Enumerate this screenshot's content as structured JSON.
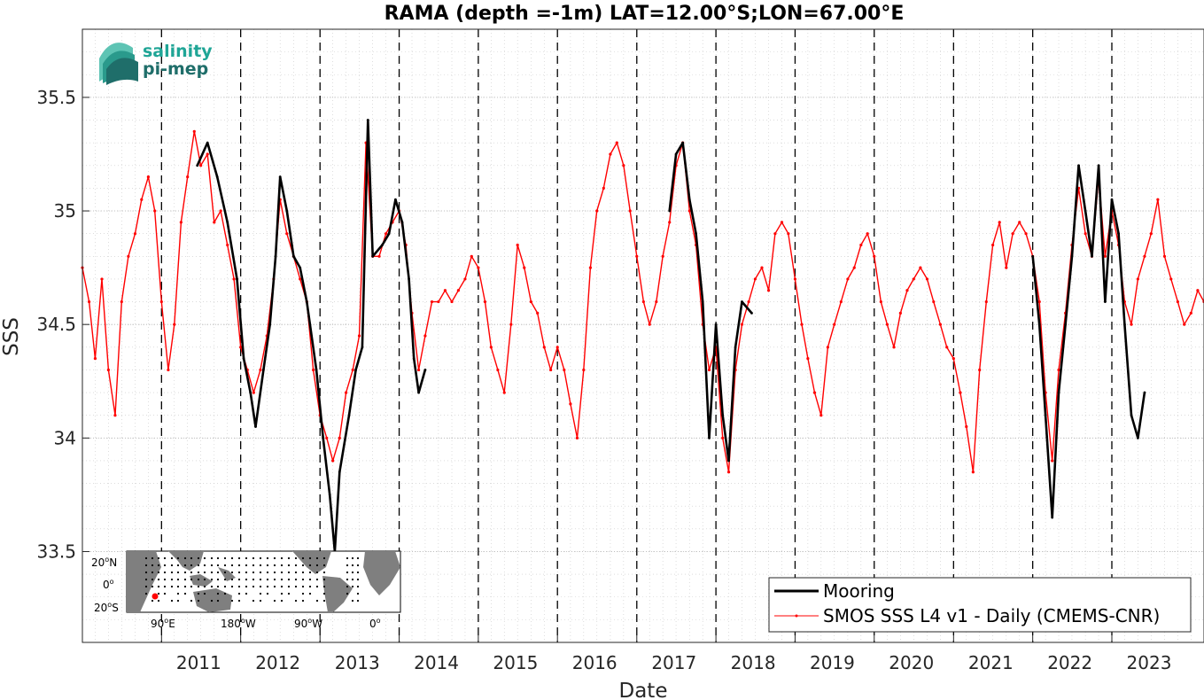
{
  "colors": {
    "mooring": "#000000",
    "smos": "#ff0000",
    "vline": "#000000",
    "grid": "#c8c8c8",
    "logo_light": "#1fa596",
    "logo_dark": "#1f6e6a",
    "map_land": "#7f7f7f",
    "map_ocean": "#ffffff",
    "map_marker": "#ff0000"
  },
  "logo": {
    "line1": "salinity",
    "line2": "pi-mep"
  },
  "inset_map": {
    "lat_ticks": [
      "20",
      "0",
      "20"
    ],
    "lat_suffix": [
      "N",
      "",
      "S"
    ],
    "lon_ticks": [
      "90",
      "180",
      "90",
      "0"
    ],
    "lon_suffix": [
      "E",
      "W",
      "W",
      ""
    ],
    "marker": {
      "lat": -12,
      "lon": 67
    }
  },
  "chart_data": {
    "type": "line",
    "title": "RAMA (depth =-1m) LAT=12.00°S;LON=67.00°E",
    "xlabel": "Date",
    "ylabel": "SSS",
    "xlim": [
      "2010-01-01",
      "2024-03-01"
    ],
    "ylim": [
      33.1,
      35.8
    ],
    "yticks": [
      33.5,
      34,
      34.5,
      35,
      35.5
    ],
    "ytick_labels": [
      "33.5",
      "34",
      "34.5",
      "35",
      "35.5"
    ],
    "xticks": [
      "2011",
      "2012",
      "2013",
      "2014",
      "2015",
      "2016",
      "2017",
      "2018",
      "2019",
      "2020",
      "2021",
      "2022",
      "2023"
    ],
    "year_lines": [
      "2011-01-01",
      "2012-01-01",
      "2013-01-01",
      "2014-01-01",
      "2015-01-01",
      "2016-01-01",
      "2017-01-01",
      "2018-01-01",
      "2019-01-01",
      "2020-01-01",
      "2021-01-01",
      "2022-01-01",
      "2023-01-01"
    ],
    "grid": true,
    "legend_position": "bottom-right",
    "series": [
      {
        "name": "Mooring",
        "segments": [
          [
            [
              "2011-06-15",
              35.2
            ],
            [
              "2011-08-01",
              35.3
            ],
            [
              "2011-09-15",
              35.15
            ],
            [
              "2011-11-01",
              34.95
            ],
            [
              "2011-12-15",
              34.7
            ],
            [
              "2012-01-15",
              34.35
            ],
            [
              "2012-02-15",
              34.2
            ],
            [
              "2012-03-10",
              34.05
            ],
            [
              "2012-04-15",
              34.3
            ],
            [
              "2012-05-15",
              34.5
            ],
            [
              "2012-06-10",
              34.8
            ],
            [
              "2012-07-01",
              35.15
            ],
            [
              "2012-08-01",
              35.0
            ],
            [
              "2012-09-01",
              34.8
            ],
            [
              "2012-10-01",
              34.75
            ],
            [
              "2012-11-01",
              34.6
            ],
            [
              "2012-12-15",
              34.3
            ],
            [
              "2013-01-15",
              34.0
            ],
            [
              "2013-02-15",
              33.75
            ],
            [
              "2013-03-10",
              33.5
            ],
            [
              "2013-04-01",
              33.85
            ],
            [
              "2013-05-15",
              34.1
            ],
            [
              "2013-06-15",
              34.3
            ],
            [
              "2013-07-15",
              34.4
            ],
            [
              "2013-08-10",
              35.4
            ],
            [
              "2013-09-01",
              34.8
            ],
            [
              "2013-10-15",
              34.85
            ],
            [
              "2013-11-15",
              34.9
            ],
            [
              "2013-12-15",
              35.05
            ],
            [
              "2014-01-15",
              34.95
            ],
            [
              "2014-02-15",
              34.7
            ],
            [
              "2014-03-10",
              34.35
            ],
            [
              "2014-04-01",
              34.2
            ],
            [
              "2014-05-01",
              34.3
            ]
          ],
          [
            [
              "2017-06-01",
              35.0
            ],
            [
              "2017-07-01",
              35.25
            ],
            [
              "2017-08-01",
              35.3
            ],
            [
              "2017-09-01",
              35.05
            ],
            [
              "2017-10-01",
              34.9
            ],
            [
              "2017-11-01",
              34.6
            ],
            [
              "2017-12-01",
              34.0
            ],
            [
              "2018-01-01",
              34.5
            ],
            [
              "2018-02-01",
              34.1
            ],
            [
              "2018-03-01",
              33.9
            ],
            [
              "2018-04-01",
              34.4
            ],
            [
              "2018-05-01",
              34.6
            ],
            [
              "2018-06-15",
              34.55
            ]
          ],
          [
            [
              "2022-01-01",
              34.8
            ],
            [
              "2022-02-01",
              34.5
            ],
            [
              "2022-03-01",
              34.1
            ],
            [
              "2022-04-01",
              33.65
            ],
            [
              "2022-05-01",
              34.2
            ],
            [
              "2022-06-01",
              34.5
            ],
            [
              "2022-07-01",
              34.8
            ],
            [
              "2022-08-01",
              35.2
            ],
            [
              "2022-09-01",
              35.0
            ],
            [
              "2022-10-01",
              34.8
            ],
            [
              "2022-11-01",
              35.2
            ],
            [
              "2022-12-01",
              34.6
            ],
            [
              "2023-01-01",
              35.05
            ],
            [
              "2023-02-01",
              34.9
            ],
            [
              "2023-03-01",
              34.5
            ],
            [
              "2023-04-01",
              34.1
            ],
            [
              "2023-05-01",
              34.0
            ],
            [
              "2023-06-01",
              34.2
            ]
          ]
        ]
      },
      {
        "name": "SMOS SSS L4 v1 - Daily (CMEMS-CNR)",
        "points": [
          [
            "2010-01-01",
            34.75
          ],
          [
            "2010-02-01",
            34.6
          ],
          [
            "2010-03-01",
            34.35
          ],
          [
            "2010-04-01",
            34.7
          ],
          [
            "2010-05-01",
            34.3
          ],
          [
            "2010-06-01",
            34.1
          ],
          [
            "2010-07-01",
            34.6
          ],
          [
            "2010-08-01",
            34.8
          ],
          [
            "2010-09-01",
            34.9
          ],
          [
            "2010-10-01",
            35.05
          ],
          [
            "2010-11-01",
            35.15
          ],
          [
            "2010-12-01",
            35.0
          ],
          [
            "2011-01-01",
            34.6
          ],
          [
            "2011-02-01",
            34.3
          ],
          [
            "2011-03-01",
            34.5
          ],
          [
            "2011-04-01",
            34.95
          ],
          [
            "2011-05-01",
            35.15
          ],
          [
            "2011-06-01",
            35.35
          ],
          [
            "2011-07-01",
            35.2
          ],
          [
            "2011-08-01",
            35.25
          ],
          [
            "2011-09-01",
            34.95
          ],
          [
            "2011-10-01",
            35.0
          ],
          [
            "2011-11-01",
            34.85
          ],
          [
            "2011-12-01",
            34.7
          ],
          [
            "2012-01-01",
            34.4
          ],
          [
            "2012-02-01",
            34.3
          ],
          [
            "2012-03-01",
            34.2
          ],
          [
            "2012-04-01",
            34.3
          ],
          [
            "2012-05-01",
            34.45
          ],
          [
            "2012-06-01",
            34.7
          ],
          [
            "2012-07-01",
            35.05
          ],
          [
            "2012-08-01",
            34.9
          ],
          [
            "2012-09-01",
            34.8
          ],
          [
            "2012-10-01",
            34.7
          ],
          [
            "2012-11-01",
            34.6
          ],
          [
            "2012-12-01",
            34.3
          ],
          [
            "2013-01-01",
            34.1
          ],
          [
            "2013-02-01",
            34.0
          ],
          [
            "2013-03-01",
            33.9
          ],
          [
            "2013-04-01",
            34.0
          ],
          [
            "2013-05-01",
            34.2
          ],
          [
            "2013-06-01",
            34.3
          ],
          [
            "2013-07-01",
            34.45
          ],
          [
            "2013-08-01",
            35.3
          ],
          [
            "2013-09-01",
            34.8
          ],
          [
            "2013-10-01",
            34.8
          ],
          [
            "2013-11-01",
            34.9
          ],
          [
            "2013-12-01",
            34.95
          ],
          [
            "2014-01-01",
            35.0
          ],
          [
            "2014-02-01",
            34.85
          ],
          [
            "2014-03-01",
            34.55
          ],
          [
            "2014-04-01",
            34.3
          ],
          [
            "2014-05-01",
            34.45
          ],
          [
            "2014-06-01",
            34.6
          ],
          [
            "2014-07-01",
            34.6
          ],
          [
            "2014-08-01",
            34.65
          ],
          [
            "2014-09-01",
            34.6
          ],
          [
            "2014-10-01",
            34.65
          ],
          [
            "2014-11-01",
            34.7
          ],
          [
            "2014-12-01",
            34.8
          ],
          [
            "2015-01-01",
            34.75
          ],
          [
            "2015-02-01",
            34.6
          ],
          [
            "2015-03-01",
            34.4
          ],
          [
            "2015-04-01",
            34.3
          ],
          [
            "2015-05-01",
            34.2
          ],
          [
            "2015-06-01",
            34.5
          ],
          [
            "2015-07-01",
            34.85
          ],
          [
            "2015-08-01",
            34.75
          ],
          [
            "2015-09-01",
            34.6
          ],
          [
            "2015-10-01",
            34.55
          ],
          [
            "2015-11-01",
            34.4
          ],
          [
            "2015-12-01",
            34.3
          ],
          [
            "2016-01-01",
            34.4
          ],
          [
            "2016-02-01",
            34.3
          ],
          [
            "2016-03-01",
            34.15
          ],
          [
            "2016-04-01",
            34.0
          ],
          [
            "2016-05-01",
            34.3
          ],
          [
            "2016-06-01",
            34.75
          ],
          [
            "2016-07-01",
            35.0
          ],
          [
            "2016-08-01",
            35.1
          ],
          [
            "2016-09-01",
            35.25
          ],
          [
            "2016-10-01",
            35.3
          ],
          [
            "2016-11-01",
            35.2
          ],
          [
            "2016-12-01",
            35.0
          ],
          [
            "2017-01-01",
            34.8
          ],
          [
            "2017-02-01",
            34.6
          ],
          [
            "2017-03-01",
            34.5
          ],
          [
            "2017-04-01",
            34.6
          ],
          [
            "2017-05-01",
            34.8
          ],
          [
            "2017-06-01",
            34.95
          ],
          [
            "2017-07-01",
            35.2
          ],
          [
            "2017-08-01",
            35.3
          ],
          [
            "2017-09-01",
            35.0
          ],
          [
            "2017-10-01",
            34.85
          ],
          [
            "2017-11-01",
            34.5
          ],
          [
            "2017-12-01",
            34.3
          ],
          [
            "2018-01-01",
            34.4
          ],
          [
            "2018-02-01",
            34.0
          ],
          [
            "2018-03-01",
            33.85
          ],
          [
            "2018-04-01",
            34.3
          ],
          [
            "2018-05-01",
            34.5
          ],
          [
            "2018-06-01",
            34.6
          ],
          [
            "2018-07-01",
            34.7
          ],
          [
            "2018-08-01",
            34.75
          ],
          [
            "2018-09-01",
            34.65
          ],
          [
            "2018-10-01",
            34.9
          ],
          [
            "2018-11-01",
            34.95
          ],
          [
            "2018-12-01",
            34.9
          ],
          [
            "2019-01-01",
            34.7
          ],
          [
            "2019-02-01",
            34.5
          ],
          [
            "2019-03-01",
            34.35
          ],
          [
            "2019-04-01",
            34.2
          ],
          [
            "2019-05-01",
            34.1
          ],
          [
            "2019-06-01",
            34.4
          ],
          [
            "2019-07-01",
            34.5
          ],
          [
            "2019-08-01",
            34.6
          ],
          [
            "2019-09-01",
            34.7
          ],
          [
            "2019-10-01",
            34.75
          ],
          [
            "2019-11-01",
            34.85
          ],
          [
            "2019-12-01",
            34.9
          ],
          [
            "2020-01-01",
            34.8
          ],
          [
            "2020-02-01",
            34.6
          ],
          [
            "2020-03-01",
            34.5
          ],
          [
            "2020-04-01",
            34.4
          ],
          [
            "2020-05-01",
            34.55
          ],
          [
            "2020-06-01",
            34.65
          ],
          [
            "2020-07-01",
            34.7
          ],
          [
            "2020-08-01",
            34.75
          ],
          [
            "2020-09-01",
            34.7
          ],
          [
            "2020-10-01",
            34.6
          ],
          [
            "2020-11-01",
            34.5
          ],
          [
            "2020-12-01",
            34.4
          ],
          [
            "2021-01-01",
            34.35
          ],
          [
            "2021-02-01",
            34.2
          ],
          [
            "2021-03-01",
            34.05
          ],
          [
            "2021-04-01",
            33.85
          ],
          [
            "2021-05-01",
            34.3
          ],
          [
            "2021-06-01",
            34.6
          ],
          [
            "2021-07-01",
            34.85
          ],
          [
            "2021-08-01",
            34.95
          ],
          [
            "2021-09-01",
            34.75
          ],
          [
            "2021-10-01",
            34.9
          ],
          [
            "2021-11-01",
            34.95
          ],
          [
            "2021-12-01",
            34.9
          ],
          [
            "2022-01-01",
            34.8
          ],
          [
            "2022-02-01",
            34.6
          ],
          [
            "2022-03-01",
            34.2
          ],
          [
            "2022-04-01",
            33.9
          ],
          [
            "2022-05-01",
            34.3
          ],
          [
            "2022-06-01",
            34.55
          ],
          [
            "2022-07-01",
            34.85
          ],
          [
            "2022-08-01",
            35.1
          ],
          [
            "2022-09-01",
            34.9
          ],
          [
            "2022-10-01",
            34.8
          ],
          [
            "2022-11-01",
            35.15
          ],
          [
            "2022-12-01",
            34.8
          ],
          [
            "2023-01-01",
            35.0
          ],
          [
            "2023-02-01",
            34.85
          ],
          [
            "2023-03-01",
            34.6
          ],
          [
            "2023-04-01",
            34.5
          ],
          [
            "2023-05-01",
            34.7
          ],
          [
            "2023-06-01",
            34.8
          ],
          [
            "2023-07-01",
            34.9
          ],
          [
            "2023-08-01",
            35.05
          ],
          [
            "2023-09-01",
            34.8
          ],
          [
            "2023-10-01",
            34.7
          ],
          [
            "2023-11-01",
            34.6
          ],
          [
            "2023-12-01",
            34.5
          ],
          [
            "2024-01-01",
            34.55
          ],
          [
            "2024-02-01",
            34.65
          ],
          [
            "2024-03-01",
            34.6
          ]
        ]
      }
    ]
  }
}
